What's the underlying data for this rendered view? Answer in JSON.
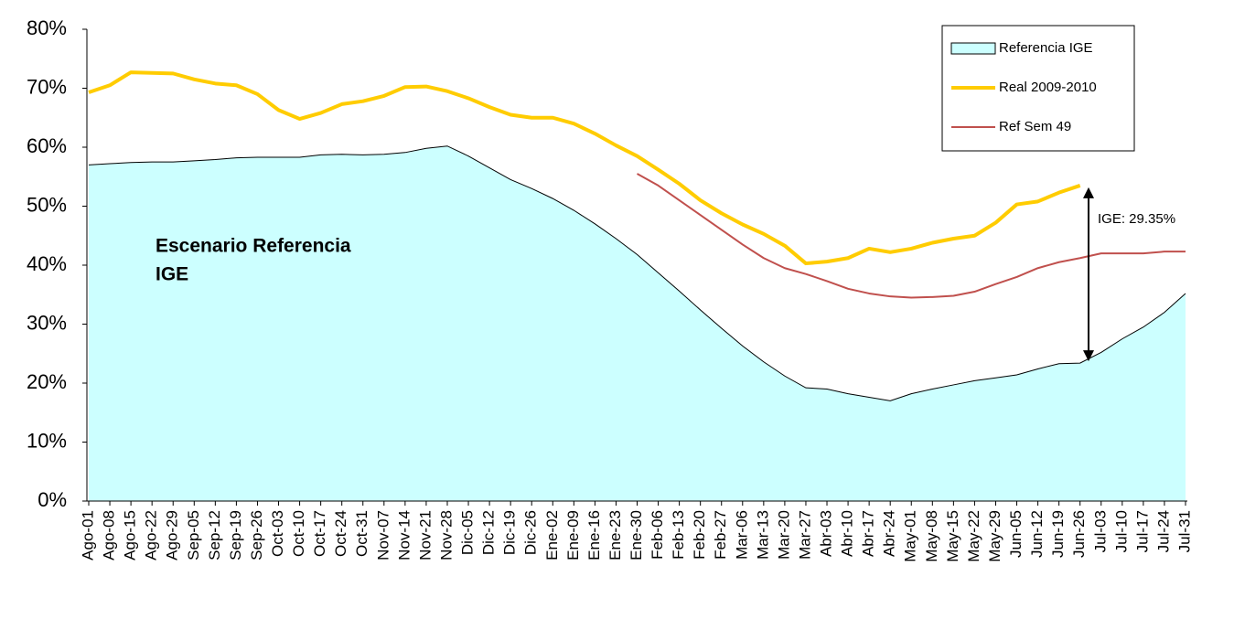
{
  "chart_data": {
    "type": "line",
    "categories": [
      "Ago-01",
      "Ago-08",
      "Ago-15",
      "Ago-22",
      "Ago-29",
      "Sep-05",
      "Sep-12",
      "Sep-19",
      "Sep-26",
      "Oct-03",
      "Oct-10",
      "Oct-17",
      "Oct-24",
      "Oct-31",
      "Nov-07",
      "Nov-14",
      "Nov-21",
      "Nov-28",
      "Dic-05",
      "Dic-12",
      "Dic-19",
      "Dic-26",
      "Ene-02",
      "Ene-09",
      "Ene-16",
      "Ene-23",
      "Ene-30",
      "Feb-06",
      "Feb-13",
      "Feb-20",
      "Feb-27",
      "Mar-06",
      "Mar-13",
      "Mar-20",
      "Mar-27",
      "Abr-03",
      "Abr-10",
      "Abr-17",
      "Abr-24",
      "May-01",
      "May-08",
      "May-15",
      "May-22",
      "May-29",
      "Jun-05",
      "Jun-12",
      "Jun-19",
      "Jun-26",
      "Jul-03",
      "Jul-10",
      "Jul-17",
      "Jul-24",
      "Jul-31"
    ],
    "series": [
      {
        "name": "Referencia IGE",
        "type": "area",
        "color": "#ccffff",
        "values": [
          57.0,
          57.2,
          57.4,
          57.5,
          57.5,
          57.7,
          57.9,
          58.2,
          58.3,
          58.3,
          58.3,
          58.7,
          58.8,
          58.7,
          58.8,
          59.1,
          59.8,
          60.2,
          58.5,
          56.5,
          54.5,
          53.0,
          51.3,
          49.3,
          47.0,
          44.5,
          41.8,
          38.7,
          35.6,
          32.4,
          29.3,
          26.3,
          23.6,
          21.2,
          19.2,
          19.0,
          18.2,
          17.6,
          17.0,
          18.2,
          19.0,
          19.7,
          20.4,
          20.9,
          21.4,
          22.4,
          23.3,
          23.4,
          25.2,
          27.5,
          29.5,
          32.0,
          35.2
        ]
      },
      {
        "name": "Real 2009-2010",
        "type": "line",
        "color": "#ffcc00",
        "values": [
          69.3,
          70.5,
          72.7,
          72.6,
          72.5,
          71.5,
          70.8,
          70.5,
          69.0,
          66.3,
          64.8,
          65.8,
          67.3,
          67.8,
          68.7,
          70.2,
          70.3,
          69.5,
          68.3,
          66.8,
          65.5,
          65.0,
          65.0,
          64.0,
          62.3,
          60.3,
          58.5,
          56.2,
          53.8,
          51.0,
          48.8,
          46.9,
          45.3,
          43.3,
          40.3,
          40.6,
          41.2,
          42.8,
          42.2,
          42.8,
          43.8,
          44.5,
          45.0,
          47.2,
          50.3,
          50.8,
          52.3,
          53.5,
          null,
          null,
          null,
          null,
          null
        ]
      },
      {
        "name": "Ref Sem 49",
        "type": "line",
        "color": "#c0504d",
        "values": [
          null,
          null,
          null,
          null,
          null,
          null,
          null,
          null,
          null,
          null,
          null,
          null,
          null,
          null,
          null,
          null,
          null,
          null,
          null,
          null,
          null,
          null,
          null,
          null,
          null,
          null,
          55.5,
          53.5,
          51.0,
          48.5,
          46.0,
          43.5,
          41.2,
          39.5,
          38.5,
          37.3,
          36.0,
          35.2,
          34.7,
          34.5,
          34.6,
          34.8,
          35.5,
          36.8,
          38.0,
          39.5,
          40.5,
          41.2,
          42.0,
          42.0,
          42.0,
          42.3,
          42.3
        ]
      }
    ],
    "ylim": [
      0,
      80
    ],
    "yticks": [
      {
        "value": 0,
        "label": "0%"
      },
      {
        "value": 10,
        "label": "10%"
      },
      {
        "value": 20,
        "label": "20%"
      },
      {
        "value": 30,
        "label": "30%"
      },
      {
        "value": 40,
        "label": "40%"
      },
      {
        "value": 50,
        "label": "50%"
      },
      {
        "value": 60,
        "label": "60%"
      },
      {
        "value": 70,
        "label": "70%"
      },
      {
        "value": 80,
        "label": "80%"
      }
    ],
    "grid": false,
    "legend": "top-right",
    "annotations": [
      {
        "text": "Escenario Referencia"
      },
      {
        "text": "IGE"
      },
      {
        "text": "IGE: 29.35%"
      }
    ]
  }
}
